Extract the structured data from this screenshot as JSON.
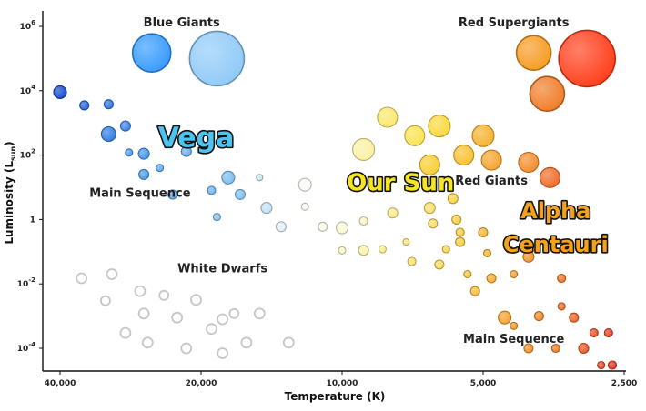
{
  "chart_data": {
    "type": "scatter",
    "title": "",
    "xlabel": "Temperature (K)",
    "ylabel": "Luminosity (L",
    "ylabel_sub": "sun",
    "ylabel_close": ")",
    "x_scale": "log",
    "x_reversed": true,
    "y_scale": "log",
    "xlim": [
      45000,
      2500
    ],
    "ylim": [
      4e-05,
      1500000
    ],
    "grid": false,
    "xticks": [
      {
        "value": 40000,
        "label": "40,000"
      },
      {
        "value": 20000,
        "label": "20,000"
      },
      {
        "value": 10000,
        "label": "10,000"
      },
      {
        "value": 5000,
        "label": "5,000"
      },
      {
        "value": 2500,
        "label": "2,500"
      }
    ],
    "yticks": [
      {
        "value": 1000000,
        "base": "10",
        "exp": "6"
      },
      {
        "value": 10000,
        "base": "10",
        "exp": "4"
      },
      {
        "value": 100,
        "base": "10",
        "exp": "2"
      },
      {
        "value": 1,
        "base": "1",
        "exp": ""
      },
      {
        "value": 0.01,
        "base": "10",
        "exp": "-2"
      },
      {
        "value": 0.0001,
        "base": "10",
        "exp": "-4"
      }
    ],
    "region_labels": [
      {
        "text": "Blue Giants",
        "x": 22000,
        "y": 1000000
      },
      {
        "text": "Red Supergiants",
        "x": 4300,
        "y": 1000000
      },
      {
        "text": "Main Sequence",
        "x": 27000,
        "y": 5
      },
      {
        "text": "Red Giants",
        "x": 4800,
        "y": 12
      },
      {
        "text": "White Dwarfs",
        "x": 18000,
        "y": 0.023
      },
      {
        "text": "Main Sequence",
        "x": 4300,
        "y": 0.00015
      }
    ],
    "callouts": [
      {
        "text": "Vega",
        "x": 20500,
        "y": 180,
        "color": "#4cc4f0"
      },
      {
        "text": "Our Sun",
        "x": 7500,
        "y": 8,
        "color": "#f6e61e"
      },
      {
        "text": "Alpha",
        "x": 3500,
        "y": 1.1,
        "color": "#f4a21c"
      },
      {
        "text": "Centauri",
        "x": 3500,
        "y": 0.1,
        "color": "#f4a21c"
      }
    ],
    "stars": [
      {
        "group": "blue-giant",
        "x": 25500,
        "y": 150000,
        "size": 21,
        "color": "#3399ff"
      },
      {
        "group": "blue-giant",
        "x": 18500,
        "y": 100000,
        "size": 30,
        "color": "#8ec9f7"
      },
      {
        "group": "red-supergiant",
        "x": 3900,
        "y": 150000,
        "size": 19,
        "color": "#f59a1e"
      },
      {
        "group": "red-supergiant",
        "x": 3000,
        "y": 100000,
        "size": 31,
        "color": "#ff3b16"
      },
      {
        "group": "red-supergiant",
        "x": 3650,
        "y": 8000,
        "size": 19,
        "color": "#f07a24"
      },
      {
        "group": "main-sequence",
        "x": 40000,
        "y": 9000,
        "size": 7,
        "color": "#1447cc"
      },
      {
        "group": "main-sequence",
        "x": 35500,
        "y": 3500,
        "size": 5,
        "color": "#2266dd"
      },
      {
        "group": "main-sequence",
        "x": 31500,
        "y": 3800,
        "size": 5,
        "color": "#2a74e0"
      },
      {
        "group": "main-sequence",
        "x": 29000,
        "y": 800,
        "size": 5.5,
        "color": "#3a86e6"
      },
      {
        "group": "main-sequence",
        "x": 31500,
        "y": 450,
        "size": 8,
        "color": "#2f7ae3"
      },
      {
        "group": "main-sequence",
        "x": 28500,
        "y": 120,
        "size": 4,
        "color": "#4b98ea"
      },
      {
        "group": "main-sequence",
        "x": 26500,
        "y": 110,
        "size": 6,
        "color": "#4196e8"
      },
      {
        "group": "main-sequence",
        "x": 26500,
        "y": 25,
        "size": 5.5,
        "color": "#4a9ce9"
      },
      {
        "group": "main-sequence",
        "x": 24500,
        "y": 40,
        "size": 4,
        "color": "#5aa7ec"
      },
      {
        "group": "main-sequence",
        "x": 23000,
        "y": 6,
        "size": 5,
        "color": "#5eaaec"
      },
      {
        "group": "main-sequence",
        "x": 21500,
        "y": 130,
        "size": 5.5,
        "color": "#63b0ee"
      },
      {
        "group": "main-sequence",
        "x": 19000,
        "y": 8,
        "size": 4.5,
        "color": "#6bb4ee"
      },
      {
        "group": "main-sequence",
        "x": 17500,
        "y": 20,
        "size": 7,
        "color": "#7abdf0"
      },
      {
        "group": "main-sequence",
        "x": 16500,
        "y": 6,
        "size": 5.5,
        "color": "#80c0f0"
      },
      {
        "group": "main-sequence",
        "x": 18500,
        "y": 1.2,
        "size": 4,
        "color": "#86c3f0"
      },
      {
        "group": "main-sequence",
        "x": 15000,
        "y": 20,
        "size": 3.5,
        "color": "#c9e3f5"
      },
      {
        "group": "main-sequence",
        "x": 14500,
        "y": 2.3,
        "size": 6,
        "color": "#c2e0f5"
      },
      {
        "group": "main-sequence",
        "x": 13500,
        "y": 0.6,
        "size": 5.5,
        "color": "#e4eef5"
      },
      {
        "group": "main-sequence",
        "x": 12000,
        "y": 12,
        "size": 7,
        "color": "#fbfbf6"
      },
      {
        "group": "main-sequence",
        "x": 12000,
        "y": 2.5,
        "size": 4,
        "color": "#f9f9f1"
      },
      {
        "group": "main-sequence",
        "x": 11000,
        "y": 0.6,
        "size": 5,
        "color": "#fbfbe8"
      },
      {
        "group": "main-sequence",
        "x": 10000,
        "y": 0.55,
        "size": 6.5,
        "color": "#fcfad8"
      },
      {
        "group": "main-sequence",
        "x": 10000,
        "y": 0.11,
        "size": 4,
        "color": "#fbf6c6"
      },
      {
        "group": "main-sequence",
        "x": 9000,
        "y": 0.9,
        "size": 4.5,
        "color": "#fcf6c2"
      },
      {
        "group": "main-sequence",
        "x": 9000,
        "y": 0.11,
        "size": 5.5,
        "color": "#fbf1a5"
      },
      {
        "group": "main-sequence",
        "x": 8200,
        "y": 0.12,
        "size": 4,
        "color": "#fbed8e"
      },
      {
        "group": "main-sequence",
        "x": 7800,
        "y": 1.6,
        "size": 5.5,
        "color": "#fbec89"
      },
      {
        "group": "main-sequence",
        "x": 7300,
        "y": 0.2,
        "size": 3.5,
        "color": "#fae67a"
      },
      {
        "group": "main-sequence",
        "x": 7100,
        "y": 0.05,
        "size": 4.5,
        "color": "#fae171"
      },
      {
        "group": "main-sequence",
        "x": 6500,
        "y": 2.3,
        "size": 6,
        "color": "#fadf6a"
      },
      {
        "group": "main-sequence",
        "x": 6400,
        "y": 0.75,
        "size": 5,
        "color": "#f9dd62"
      },
      {
        "group": "main-sequence",
        "x": 6200,
        "y": 0.04,
        "size": 5,
        "color": "#f9da58"
      },
      {
        "group": "main-sequence",
        "x": 6000,
        "y": 0.12,
        "size": 4,
        "color": "#f9d54a"
      },
      {
        "group": "main-sequence",
        "x": 5800,
        "y": 4.5,
        "size": 5.5,
        "color": "#f8d24a"
      },
      {
        "group": "main-sequence",
        "x": 5700,
        "y": 1,
        "size": 5,
        "color": "#f8cf43"
      },
      {
        "group": "main-sequence",
        "x": 5600,
        "y": 0.4,
        "size": 4.5,
        "color": "#f8cc3e"
      },
      {
        "group": "main-sequence",
        "x": 5600,
        "y": 0.2,
        "size": 5,
        "color": "#f8cb40"
      },
      {
        "group": "main-sequence",
        "x": 5400,
        "y": 0.02,
        "size": 4,
        "color": "#f8c437"
      },
      {
        "group": "main-sequence",
        "x": 5200,
        "y": 0.006,
        "size": 5,
        "color": "#f7be33"
      },
      {
        "group": "main-sequence",
        "x": 5000,
        "y": 0.4,
        "size": 5,
        "color": "#f7b530"
      },
      {
        "group": "main-sequence",
        "x": 4900,
        "y": 0.09,
        "size": 4,
        "color": "#f6b12f"
      },
      {
        "group": "main-sequence",
        "x": 4800,
        "y": 0.015,
        "size": 5,
        "color": "#f6ad2f"
      },
      {
        "group": "main-sequence",
        "x": 4500,
        "y": 0.0009,
        "size": 7,
        "color": "#f5a02c"
      },
      {
        "group": "main-sequence",
        "x": 4400,
        "y": 0.12,
        "size": 4,
        "color": "#f5a22c"
      },
      {
        "group": "main-sequence",
        "x": 4300,
        "y": 0.02,
        "size": 4,
        "color": "#f59e2c"
      },
      {
        "group": "main-sequence",
        "x": 4300,
        "y": 0.0005,
        "size": 4,
        "color": "#f59a2a"
      },
      {
        "group": "main-sequence",
        "x": 4000,
        "y": 0.07,
        "size": 6,
        "color": "#f4922a"
      },
      {
        "group": "main-sequence",
        "x": 4000,
        "y": 0.0001,
        "size": 5,
        "color": "#f39228"
      },
      {
        "group": "main-sequence",
        "x": 3800,
        "y": 0.001,
        "size": 5,
        "color": "#f28a28"
      },
      {
        "group": "main-sequence",
        "x": 3500,
        "y": 0.0001,
        "size": 4.5,
        "color": "#f07c27"
      },
      {
        "group": "main-sequence",
        "x": 3400,
        "y": 0.015,
        "size": 4.5,
        "color": "#ef7226"
      },
      {
        "group": "main-sequence",
        "x": 3400,
        "y": 0.002,
        "size": 4,
        "color": "#ee6e25"
      },
      {
        "group": "main-sequence",
        "x": 3200,
        "y": 0.0009,
        "size": 5,
        "color": "#ec6424"
      },
      {
        "group": "main-sequence",
        "x": 3050,
        "y": 0.0001,
        "size": 5.5,
        "color": "#ea5824"
      },
      {
        "group": "main-sequence",
        "x": 2900,
        "y": 0.0003,
        "size": 4.5,
        "color": "#e84d23"
      },
      {
        "group": "main-sequence",
        "x": 2800,
        "y": 3e-05,
        "size": 4,
        "color": "#e64423"
      },
      {
        "group": "main-sequence",
        "x": 2700,
        "y": 0.0003,
        "size": 4.5,
        "color": "#e43c22"
      },
      {
        "group": "main-sequence",
        "x": 2650,
        "y": 3e-05,
        "size": 4.5,
        "color": "#e13322"
      },
      {
        "group": "red-giant",
        "x": 8000,
        "y": 1500,
        "size": 11,
        "color": "#fbe86a"
      },
      {
        "group": "red-giant",
        "x": 9000,
        "y": 150,
        "size": 12,
        "color": "#fbf0a0"
      },
      {
        "group": "red-giant",
        "x": 7000,
        "y": 400,
        "size": 11,
        "color": "#fae24e"
      },
      {
        "group": "red-giant",
        "x": 6200,
        "y": 800,
        "size": 12,
        "color": "#f9d83c"
      },
      {
        "group": "red-giant",
        "x": 6500,
        "y": 50,
        "size": 11,
        "color": "#f8cd2f"
      },
      {
        "group": "red-giant",
        "x": 5500,
        "y": 100,
        "size": 11,
        "color": "#f7c02d"
      },
      {
        "group": "red-giant",
        "x": 5000,
        "y": 400,
        "size": 12,
        "color": "#f6b12b"
      },
      {
        "group": "red-giant",
        "x": 4800,
        "y": 70,
        "size": 11,
        "color": "#f5a32b"
      },
      {
        "group": "red-giant",
        "x": 4000,
        "y": 60,
        "size": 11,
        "color": "#f28a28"
      },
      {
        "group": "red-giant",
        "x": 3600,
        "y": 20,
        "size": 11,
        "color": "#ef6a25"
      },
      {
        "group": "white-dwarf",
        "x": 36000,
        "y": 0.015,
        "size": 5.5,
        "color": "#ffffff"
      },
      {
        "group": "white-dwarf",
        "x": 31000,
        "y": 0.02,
        "size": 5.5,
        "color": "#ffffff"
      },
      {
        "group": "white-dwarf",
        "x": 32000,
        "y": 0.003,
        "size": 5,
        "color": "#ffffff"
      },
      {
        "group": "white-dwarf",
        "x": 27000,
        "y": 0.006,
        "size": 5.5,
        "color": "#ffffff"
      },
      {
        "group": "white-dwarf",
        "x": 24000,
        "y": 0.0044,
        "size": 5,
        "color": "#ffffff"
      },
      {
        "group": "white-dwarf",
        "x": 20500,
        "y": 0.0032,
        "size": 5.5,
        "color": "#ffffff"
      },
      {
        "group": "white-dwarf",
        "x": 29000,
        "y": 0.0003,
        "size": 5.5,
        "color": "#ffffff"
      },
      {
        "group": "white-dwarf",
        "x": 26500,
        "y": 0.0012,
        "size": 5.5,
        "color": "#ffffff"
      },
      {
        "group": "white-dwarf",
        "x": 22500,
        "y": 0.0009,
        "size": 5.5,
        "color": "#ffffff"
      },
      {
        "group": "white-dwarf",
        "x": 18000,
        "y": 0.0008,
        "size": 5.5,
        "color": "#ffffff"
      },
      {
        "group": "white-dwarf",
        "x": 15000,
        "y": 0.0012,
        "size": 5.5,
        "color": "#ffffff"
      },
      {
        "group": "white-dwarf",
        "x": 26000,
        "y": 0.00015,
        "size": 5.5,
        "color": "#ffffff"
      },
      {
        "group": "white-dwarf",
        "x": 21500,
        "y": 0.0001,
        "size": 5.5,
        "color": "#ffffff"
      },
      {
        "group": "white-dwarf",
        "x": 19000,
        "y": 0.0004,
        "size": 5.5,
        "color": "#ffffff"
      },
      {
        "group": "white-dwarf",
        "x": 18000,
        "y": 7e-05,
        "size": 5.5,
        "color": "#ffffff"
      },
      {
        "group": "white-dwarf",
        "x": 16000,
        "y": 0.00015,
        "size": 5.5,
        "color": "#ffffff"
      },
      {
        "group": "white-dwarf",
        "x": 13000,
        "y": 0.00015,
        "size": 5.5,
        "color": "#ffffff"
      },
      {
        "group": "white-dwarf",
        "x": 17000,
        "y": 0.0012,
        "size": 5,
        "color": "#ffffff"
      }
    ]
  }
}
